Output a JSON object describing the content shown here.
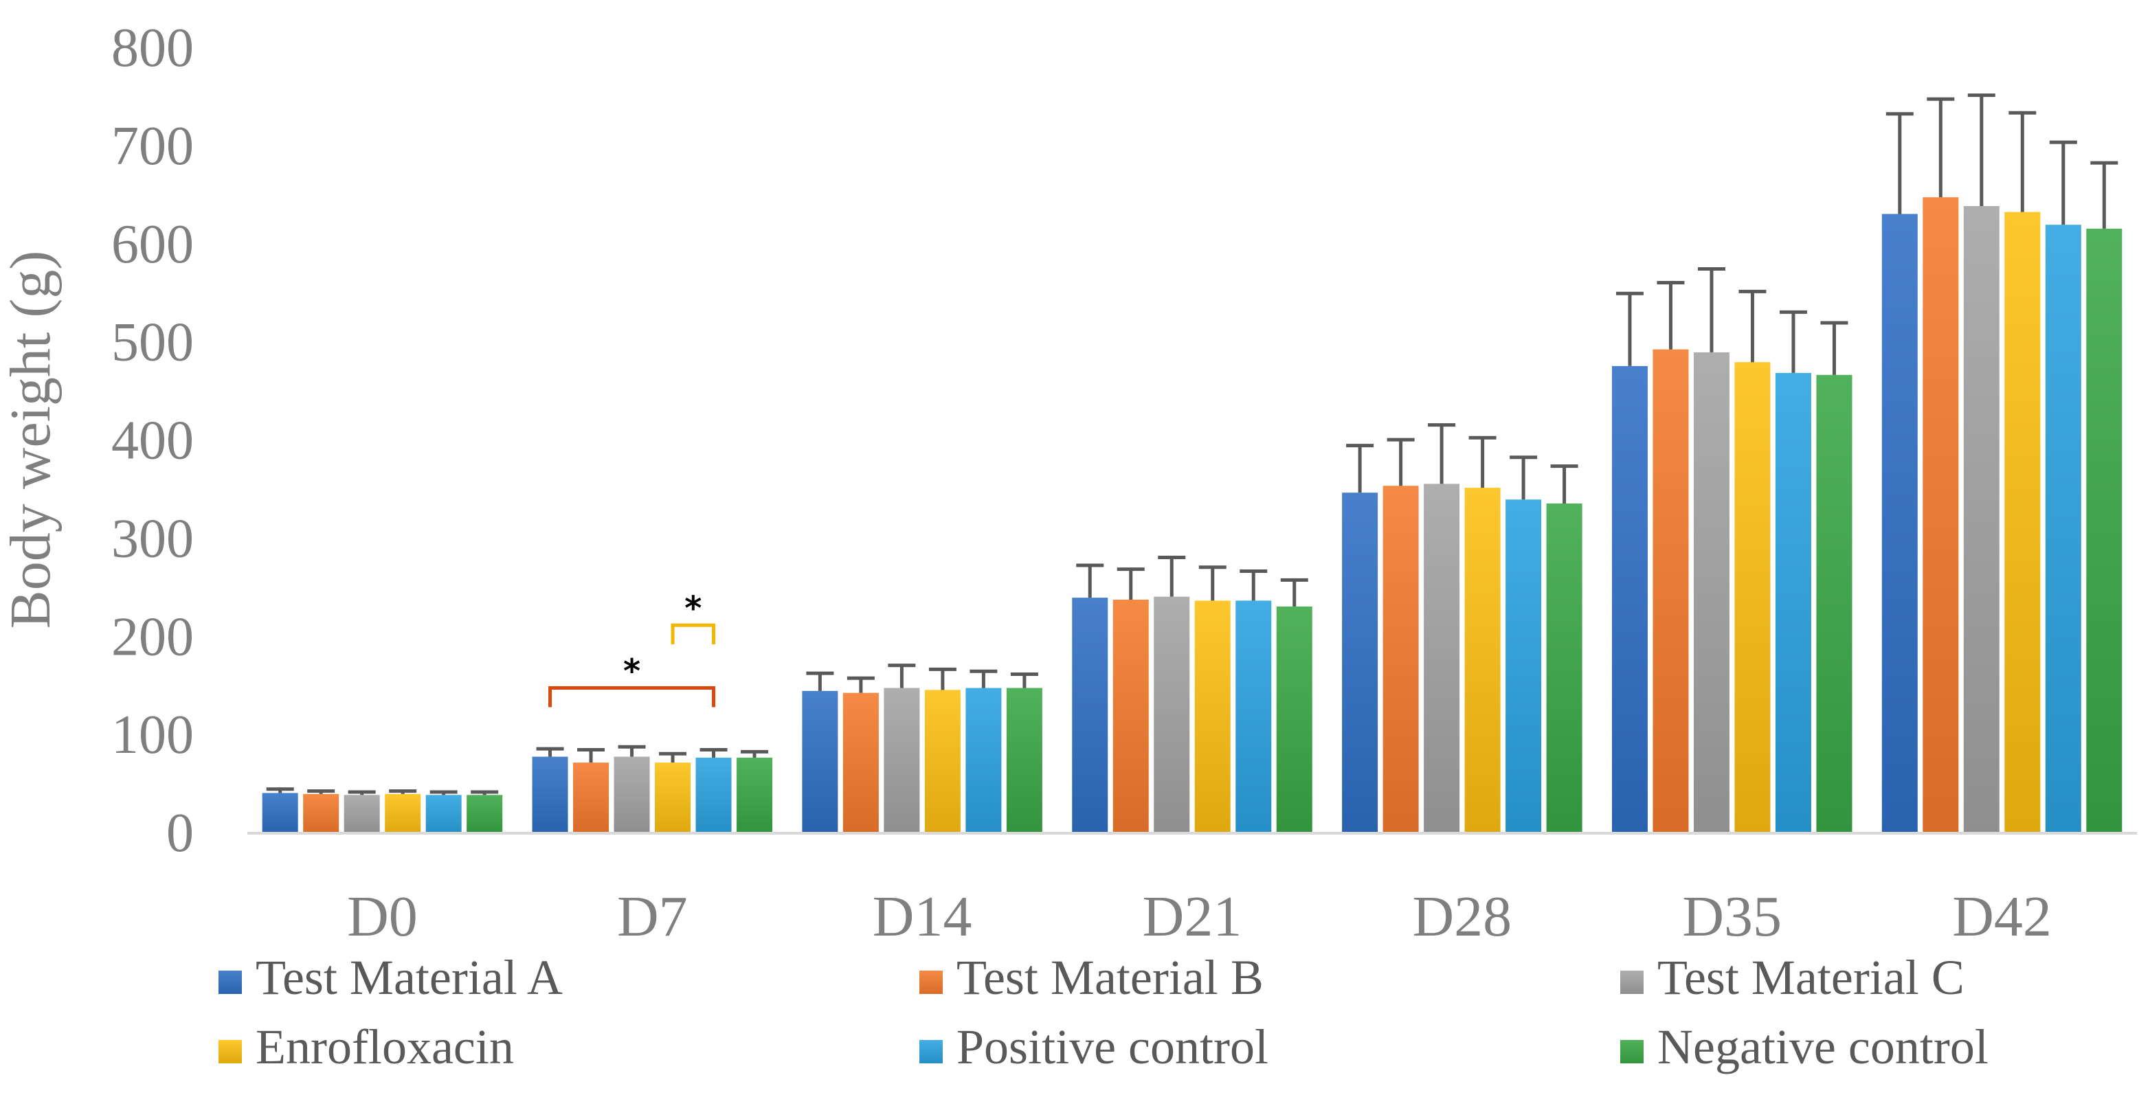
{
  "chart_data": {
    "type": "bar",
    "title": "",
    "xlabel": "",
    "ylabel": "Body weight (g)",
    "ylim": [
      0,
      800
    ],
    "yticks": [
      "0",
      "100",
      "200",
      "300",
      "400",
      "500",
      "600",
      "700",
      "800"
    ],
    "grid": false,
    "legend_position": "bottom",
    "categories": [
      "D0",
      "D7",
      "D14",
      "D21",
      "D28",
      "D35",
      "D42"
    ],
    "series": [
      {
        "name": "Test Material A",
        "color": "#2f6fc6",
        "values": [
          41,
          78,
          145,
          240,
          347,
          476,
          631
        ],
        "errors": [
          4,
          8,
          18,
          33,
          48,
          74,
          102
        ]
      },
      {
        "name": "Test Material B",
        "color": "#f47a2c",
        "values": [
          40,
          72,
          143,
          238,
          354,
          493,
          648
        ],
        "errors": [
          3,
          13,
          15,
          31,
          47,
          68,
          100
        ]
      },
      {
        "name": "Test Material C",
        "color": "#a3a3a3",
        "values": [
          39,
          78,
          148,
          241,
          356,
          490,
          639
        ],
        "errors": [
          3,
          10,
          23,
          40,
          60,
          85,
          113
        ]
      },
      {
        "name": "Enrofloxacin",
        "color": "#fdbf11",
        "values": [
          40,
          72,
          146,
          237,
          352,
          480,
          633
        ],
        "errors": [
          3,
          9,
          21,
          34,
          51,
          72,
          101
        ]
      },
      {
        "name": "Positive control",
        "color": "#2ba2e0",
        "values": [
          39,
          77,
          148,
          237,
          340,
          469,
          620
        ],
        "errors": [
          3,
          8,
          17,
          30,
          43,
          62,
          84
        ]
      },
      {
        "name": "Negative control",
        "color": "#39a845",
        "values": [
          39,
          77,
          148,
          231,
          336,
          467,
          616
        ],
        "errors": [
          3,
          6,
          14,
          27,
          38,
          53,
          67
        ]
      }
    ],
    "annotations": [
      {
        "label": "*",
        "category": "D7",
        "from_series": "Test Material A",
        "to_series": "Positive control",
        "color": "#d9480f",
        "level": 148
      },
      {
        "label": "*",
        "category": "D7",
        "from_series": "Enrofloxacin",
        "to_series": "Positive control",
        "color": "#f2b705",
        "level": 212
      }
    ]
  }
}
